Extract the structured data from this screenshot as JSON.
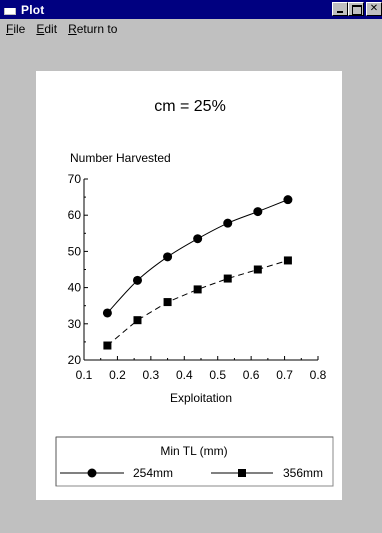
{
  "window": {
    "title": "Plot"
  },
  "menu": {
    "file": {
      "first": "F",
      "rest": "ile"
    },
    "edit": {
      "first": "E",
      "rest": "dit"
    },
    "return_to": {
      "first": "R",
      "rest": "eturn to"
    }
  },
  "chart_data": {
    "type": "line",
    "title": "cm = 25%",
    "ylabel": "Number Harvested",
    "xlabel": "Exploitation",
    "xlim": [
      0.1,
      0.8
    ],
    "ylim": [
      20,
      70
    ],
    "x_ticks": [
      "0.1",
      "0.2",
      "0.3",
      "0.4",
      "0.5",
      "0.6",
      "0.7",
      "0.8"
    ],
    "y_ticks": [
      "20",
      "30",
      "40",
      "50",
      "60",
      "70"
    ],
    "grid": false,
    "legend": {
      "title": "Min TL (mm)",
      "position": "bottom"
    },
    "series": [
      {
        "name": "254mm",
        "marker": "circle",
        "x": [
          0.17,
          0.26,
          0.35,
          0.44,
          0.53,
          0.62,
          0.71
        ],
        "y": [
          33,
          42,
          48.5,
          53.5,
          57.8,
          61,
          64.3
        ]
      },
      {
        "name": "356mm",
        "marker": "square",
        "x": [
          0.17,
          0.26,
          0.35,
          0.44,
          0.53,
          0.62,
          0.71
        ],
        "y": [
          24,
          31,
          36,
          39.5,
          42.5,
          45,
          47.5
        ]
      }
    ]
  }
}
